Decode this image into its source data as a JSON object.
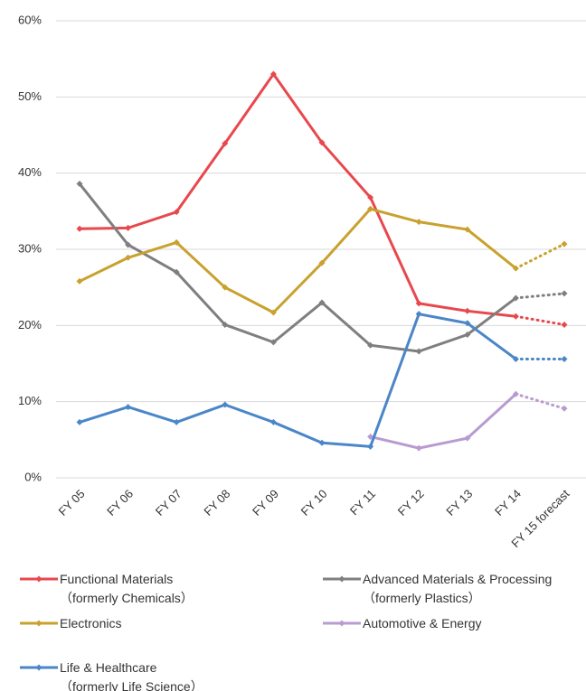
{
  "chart_data": {
    "type": "line",
    "categories": [
      "FY 05",
      "FY 06",
      "FY 07",
      "FY 08",
      "FY 09",
      "FY 10",
      "FY 11",
      "FY 12",
      "FY 13",
      "FY 14",
      "FY 15 forecast"
    ],
    "series": [
      {
        "name": "Functional Materials\n（formerly Chemicals）",
        "color": "#e8484d",
        "values": [
          32.7,
          32.8,
          34.9,
          43.9,
          53.0,
          44.0,
          36.8,
          22.9,
          21.9,
          21.2,
          20.1
        ]
      },
      {
        "name": "Advanced Materials & Processing\n（formerly Plastics）",
        "color": "#7f7f7f",
        "values": [
          38.6,
          30.6,
          27.0,
          20.1,
          17.8,
          23.0,
          17.4,
          16.6,
          18.8,
          23.6,
          24.2
        ]
      },
      {
        "name": "Electronics",
        "color": "#c9a12e",
        "values": [
          25.8,
          28.9,
          30.9,
          25.0,
          21.7,
          28.2,
          35.3,
          33.6,
          32.6,
          27.5,
          30.7
        ]
      },
      {
        "name": "Automotive & Energy",
        "color": "#b89bd0",
        "values": [
          null,
          null,
          null,
          null,
          null,
          null,
          5.4,
          3.9,
          5.2,
          11.0,
          9.1
        ]
      },
      {
        "name": "Life & Healthcare\n（formerly Life Science）",
        "color": "#4a86c8",
        "values": [
          7.3,
          9.3,
          7.3,
          9.6,
          7.3,
          4.6,
          4.1,
          21.5,
          20.3,
          15.6,
          15.6
        ]
      }
    ],
    "ylim": [
      0,
      60
    ],
    "yticks": [
      {
        "value": 0,
        "label": "0%"
      },
      {
        "value": 10,
        "label": "10%"
      },
      {
        "value": 20,
        "label": "20%"
      },
      {
        "value": 30,
        "label": "30%"
      },
      {
        "value": 40,
        "label": "40%"
      },
      {
        "value": 50,
        "label": "50%"
      },
      {
        "value": 60,
        "label": "60%"
      }
    ],
    "grid": true,
    "last_segment_dotted": true
  }
}
